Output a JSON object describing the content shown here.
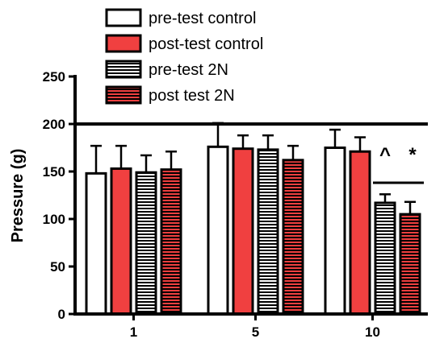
{
  "chart_data": {
    "type": "bar",
    "title": "",
    "xlabel": "",
    "ylabel": "Pressure (g)",
    "ylim": [
      0,
      250
    ],
    "yticks": [
      0,
      50,
      100,
      150,
      200,
      250
    ],
    "categories": [
      "1",
      "5",
      "10"
    ],
    "reference_line": 200,
    "legend_position": "top",
    "series": [
      {
        "name": "pre-test control",
        "fill": "#ffffff",
        "pattern": "solid",
        "values": [
          148,
          176,
          175
        ],
        "errors": [
          29,
          25,
          19
        ]
      },
      {
        "name": "post-test control",
        "fill": "#f04040",
        "pattern": "solid",
        "values": [
          153,
          174,
          171
        ],
        "errors": [
          24,
          14,
          15
        ]
      },
      {
        "name": "pre-test 2N",
        "fill": "#ffffff",
        "pattern": "hstripes",
        "values": [
          149,
          173,
          117
        ],
        "errors": [
          18,
          15,
          9
        ]
      },
      {
        "name": "post test 2N",
        "fill": "#f04040",
        "pattern": "hstripes",
        "values": [
          152,
          162,
          105
        ],
        "errors": [
          19,
          15,
          13
        ]
      }
    ],
    "annotations": [
      {
        "text": "^",
        "category": "10"
      },
      {
        "text": "*",
        "category": "10"
      }
    ]
  }
}
